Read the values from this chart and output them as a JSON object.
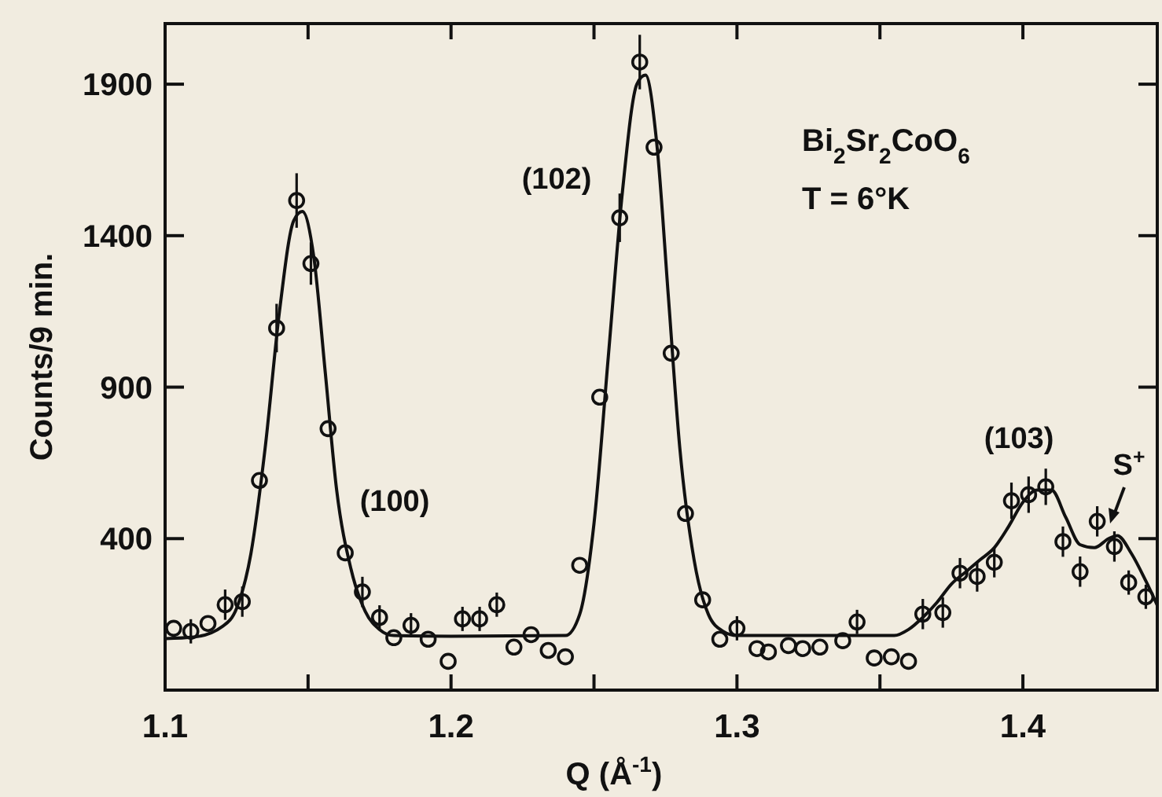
{
  "chart_data": {
    "type": "scatter",
    "xlabel": "Q (Å$^{-1}$)",
    "ylabel": "Counts/9 min.",
    "xlim": [
      1.1,
      1.447
    ],
    "ylim": [
      -100,
      2100
    ],
    "xticks": [
      1.1,
      {
        "value": 1.15,
        "label": null
      },
      1.2,
      {
        "value": 1.25,
        "label": null
      },
      1.3,
      {
        "value": 1.35,
        "label": null
      },
      1.4
    ],
    "yticks": [
      400,
      900,
      1400,
      1900
    ],
    "grid": false,
    "series": [
      {
        "color": "#111111",
        "marker": "circle",
        "x": [
          1.103,
          1.109,
          1.115,
          1.121,
          1.127,
          1.133,
          1.139,
          1.146,
          1.151,
          1.157,
          1.163,
          1.169,
          1.175,
          1.18,
          1.186,
          1.192,
          1.199,
          1.204,
          1.21,
          1.216,
          1.222,
          1.228,
          1.234,
          1.24,
          1.245,
          1.252,
          1.259,
          1.266,
          1.271,
          1.277,
          1.282,
          1.288,
          1.294,
          1.3,
          1.307,
          1.311,
          1.318,
          1.323,
          1.329,
          1.337,
          1.342,
          1.348,
          1.354,
          1.36,
          1.365,
          1.372,
          1.378,
          1.384,
          1.39,
          1.396,
          1.402,
          1.408,
          1.414,
          1.42,
          1.426,
          1.432,
          1.437,
          1.443
        ],
        "values": [
          104,
          94,
          120,
          182,
          192,
          592,
          1095,
          1516,
          1308,
          763,
          353,
          224,
          140,
          73,
          114,
          68,
          -5,
          135,
          135,
          182,
          42,
          83,
          31,
          10,
          312,
          867,
          1459,
          1973,
          1692,
          1012,
          483,
          198,
          68,
          104,
          37,
          26,
          47,
          37,
          42,
          63,
          125,
          6,
          10,
          -5,
          151,
          156,
          286,
          275,
          322,
          525,
          545,
          571,
          390,
          291,
          457,
          374,
          255,
          208
        ],
        "errors": [
          null,
          40,
          null,
          50,
          50,
          null,
          80,
          90,
          70,
          null,
          null,
          50,
          40,
          null,
          40,
          null,
          null,
          40,
          40,
          40,
          null,
          null,
          null,
          null,
          null,
          null,
          80,
          90,
          null,
          null,
          null,
          null,
          null,
          40,
          null,
          null,
          null,
          null,
          null,
          null,
          40,
          null,
          null,
          null,
          50,
          50,
          50,
          50,
          50,
          60,
          60,
          60,
          50,
          50,
          50,
          50,
          40,
          40
        ]
      },
      {
        "type": "line",
        "color": "#111111",
        "marker": "none",
        "line_style": "solid",
        "x": [
          1.1,
          1.11,
          1.12,
          1.125,
          1.13,
          1.135,
          1.14,
          1.145,
          1.148,
          1.152,
          1.156,
          1.16,
          1.165,
          1.17,
          1.175,
          1.18,
          1.2,
          1.24,
          1.245,
          1.25,
          1.255,
          1.26,
          1.265,
          1.268,
          1.272,
          1.276,
          1.28,
          1.285,
          1.29,
          1.295,
          1.3,
          1.355,
          1.36,
          1.365,
          1.37,
          1.375,
          1.38,
          1.385,
          1.39,
          1.395,
          1.4,
          1.405,
          1.41,
          1.415,
          1.42,
          1.425,
          1.43,
          1.433,
          1.438,
          1.443,
          1.447
        ],
        "values": [
          70,
          75,
          110,
          170,
          350,
          700,
          1150,
          1450,
          1480,
          1330,
          950,
          560,
          300,
          160,
          100,
          80,
          78,
          80,
          150,
          450,
          1000,
          1550,
          1900,
          1930,
          1700,
          1200,
          700,
          330,
          150,
          95,
          80,
          80,
          100,
          140,
          190,
          250,
          290,
          330,
          370,
          440,
          520,
          560,
          560,
          470,
          380,
          370,
          400,
          410,
          350,
          260,
          180
        ]
      }
    ],
    "annotations": [
      "(100)",
      "(102)",
      "(103)",
      "S$^{+}$",
      "Bi$_{2}$Sr$_{2}$CoO$_{6}$",
      "T = 6°K"
    ]
  }
}
